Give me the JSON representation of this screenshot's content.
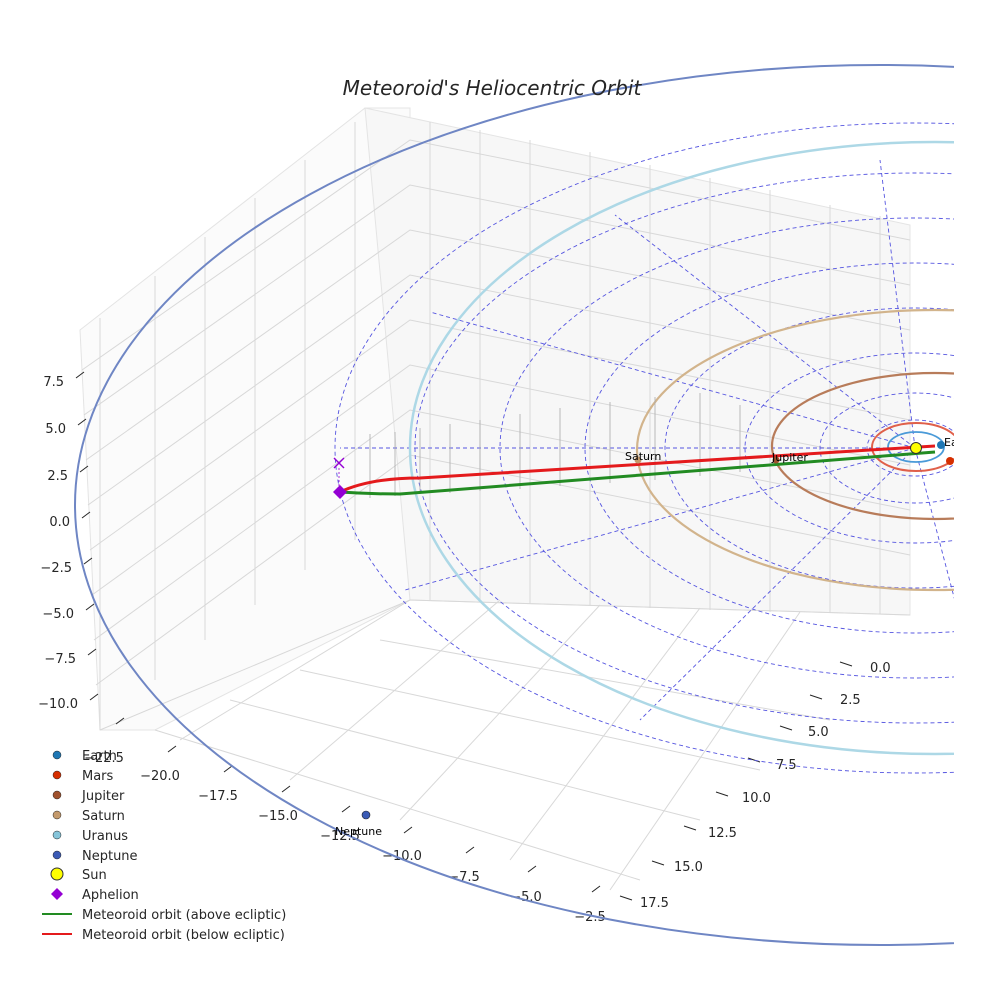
{
  "chart_data": {
    "type": "3d-orbit",
    "title": "Meteoroid's Heliocentric Orbit",
    "x_axis": {
      "ticks": [
        "−22.5",
        "−20.0",
        "−17.5",
        "−15.0",
        "−12.5",
        "−10.0",
        "−7.5",
        "−5.0",
        "−2.5"
      ]
    },
    "y_axis": {
      "ticks": [
        "0.0",
        "2.5",
        "5.0",
        "7.5",
        "10.0",
        "12.5",
        "15.0",
        "17.5"
      ]
    },
    "z_axis": {
      "ticks": [
        "7.5",
        "5.0",
        "2.5",
        "0.0",
        "−2.5",
        "−5.0",
        "−7.5",
        "−10.0"
      ]
    },
    "planets": [
      {
        "name": "Earth",
        "color": "#1f77b4",
        "label": "Earth"
      },
      {
        "name": "Mars",
        "color": "#d62f00",
        "label": "Mar"
      },
      {
        "name": "Jupiter",
        "color": "#a0522d",
        "label": "Jupiter"
      },
      {
        "name": "Saturn",
        "color": "#c49a6c",
        "label": "Saturn"
      },
      {
        "name": "Uranus",
        "color": "#86c5da",
        "label": ""
      },
      {
        "name": "Neptune",
        "color": "#3b5bb5",
        "label": "Neptune"
      }
    ],
    "sun": {
      "name": "Sun",
      "color": "#ffff00"
    },
    "aphelion": {
      "name": "Aphelion",
      "color": "#9400d3"
    },
    "meteoroid": {
      "above_label": "Meteoroid orbit (above ecliptic)",
      "below_label": "Meteoroid orbit (below ecliptic)",
      "above_color": "#228b22",
      "below_color": "#e41a1c"
    },
    "legend": [
      {
        "label": "Earth",
        "kind": "dot",
        "color": "#1f77b4"
      },
      {
        "label": "Mars",
        "kind": "dot",
        "color": "#d62f00"
      },
      {
        "label": "Jupiter",
        "kind": "dot",
        "color": "#a0522d"
      },
      {
        "label": "Saturn",
        "kind": "dot",
        "color": "#c49a6c"
      },
      {
        "label": "Uranus",
        "kind": "dot",
        "color": "#86c5da"
      },
      {
        "label": "Neptune",
        "kind": "dot",
        "color": "#3b5bb5"
      },
      {
        "label": "Sun",
        "kind": "sun",
        "color": "#ffff00"
      },
      {
        "label": "Aphelion",
        "kind": "diamond",
        "color": "#9400d3"
      },
      {
        "label": "Meteoroid orbit (above ecliptic)",
        "kind": "line",
        "color": "#228b22"
      },
      {
        "label": "Meteoroid orbit (below ecliptic)",
        "kind": "line",
        "color": "#e41a1c"
      }
    ]
  }
}
